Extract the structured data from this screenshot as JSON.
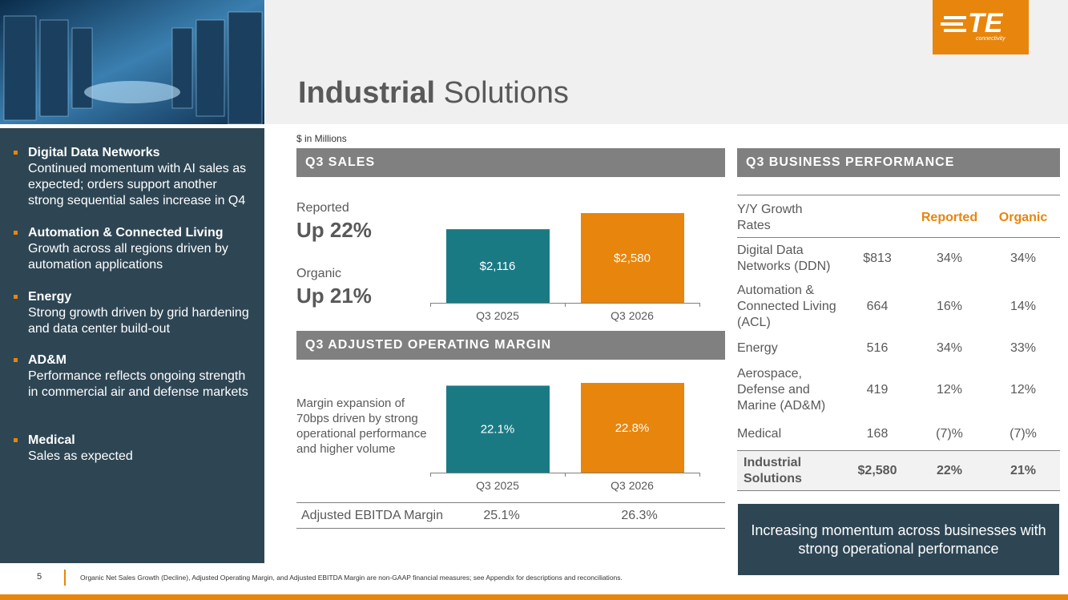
{
  "header": {
    "title_bold": "Industrial",
    "title_rest": "Solutions",
    "units": "$ in Millions"
  },
  "logo": {
    "mark": "TE",
    "tagline": "connectivity"
  },
  "sidebar": [
    {
      "heading": "Digital Data Networks",
      "text": "Continued momentum with AI sales as expected; orders support another strong sequential sales increase in Q4"
    },
    {
      "heading": "Automation & Connected Living",
      "text": "Growth across all regions driven by automation applications"
    },
    {
      "heading": "Energy",
      "text": "Strong growth driven by grid hardening and data center build-out"
    },
    {
      "heading": "AD&M",
      "text": "Performance reflects ongoing strength in commercial air and defense markets"
    },
    {
      "heading": "Medical",
      "text": "Sales as expected"
    }
  ],
  "sales": {
    "heading": "Q3 SALES",
    "reported_label": "Reported",
    "reported_value": "Up 22%",
    "organic_label": "Organic",
    "organic_value": "Up 21%",
    "chart": {
      "type": "bar",
      "categories": [
        "Q3 2025",
        "Q3 2026"
      ],
      "values": [
        2116,
        2580
      ],
      "value_labels": [
        "$2,116",
        "$2,580"
      ],
      "colors": [
        "#1a7a84",
        "#e8850c"
      ]
    }
  },
  "margin": {
    "heading": "Q3 ADJUSTED OPERATING MARGIN",
    "note": "Margin expansion of 70bps driven by strong operational performance and higher volume",
    "chart": {
      "type": "bar",
      "categories": [
        "Q3 2025",
        "Q3 2026"
      ],
      "values": [
        22.1,
        22.8
      ],
      "value_labels": [
        "22.1%",
        "22.8%"
      ],
      "colors": [
        "#1a7a84",
        "#e8850c"
      ]
    },
    "ebitda": {
      "label": "Adjusted EBITDA Margin",
      "values": [
        "25.1%",
        "26.3%"
      ]
    }
  },
  "performance": {
    "heading": "Q3 BUSINESS PERFORMANCE",
    "columns": {
      "label": "Y/Y Growth Rates",
      "reported": "Reported",
      "organic": "Organic"
    },
    "rows": [
      [
        "Digital Data Networks (DDN)",
        "$813",
        "34%",
        "34%"
      ],
      [
        "Automation & Connected Living (ACL)",
        "664",
        "16%",
        "14%"
      ],
      [
        "Energy",
        "516",
        "34%",
        "33%"
      ],
      [
        "Aerospace, Defense and Marine (AD&M)",
        "419",
        "12%",
        "12%"
      ],
      [
        "Medical",
        "168",
        "(7)%",
        "(7)%"
      ]
    ],
    "total": [
      "Industrial Solutions",
      "$2,580",
      "22%",
      "21%"
    ]
  },
  "callout": "Increasing momentum across businesses with strong operational performance",
  "footer": {
    "page": "5",
    "note": "Organic Net Sales Growth (Decline), Adjusted Operating Margin, and Adjusted EBITDA Margin are non-GAAP financial measures; see Appendix for descriptions and reconciliations."
  }
}
